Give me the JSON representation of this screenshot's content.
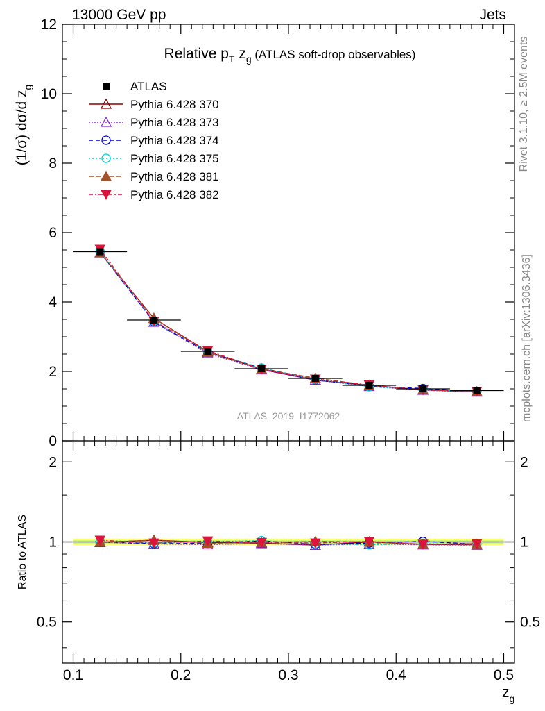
{
  "header": {
    "left": "13000 GeV pp",
    "right": "Jets"
  },
  "side_text": {
    "rivet": "Rivet 3.1.10, ≥ 2.5M events",
    "mcplots": "mcplots.cern.ch [arXiv:1306.3436]"
  },
  "watermark": "ATLAS_2019_I1772062",
  "chart_data": {
    "type": "line",
    "title": {
      "prefix": "Relative p",
      "sub1": "T",
      "mid": " z",
      "sub2": "g",
      "suffix": " (ATLAS soft-drop observables)"
    },
    "xlabel": {
      "main": "z",
      "sub": "g"
    },
    "ylabel": {
      "main": "(1/σ) dσ/d z",
      "sub": "g"
    },
    "ratio_ylabel": "Ratio to ATLAS",
    "xlim": [
      0.09,
      0.51
    ],
    "ylim": [
      0,
      12
    ],
    "ratio_ylim": [
      0.35,
      2.4
    ],
    "x_ticks": [
      "0.1",
      "0.2",
      "0.3",
      "0.4",
      "0.5"
    ],
    "y_ticks": [
      "0",
      "2",
      "4",
      "6",
      "8",
      "10",
      "12"
    ],
    "ratio_ticks": [
      "0.5",
      "1",
      "2"
    ],
    "x": [
      0.125,
      0.175,
      0.225,
      0.275,
      0.325,
      0.375,
      0.425,
      0.475
    ],
    "x_err": 0.025,
    "data": {
      "name": "ATLAS",
      "values": [
        5.45,
        3.48,
        2.58,
        2.08,
        1.8,
        1.6,
        1.5,
        1.45
      ],
      "band": 0.03
    },
    "series": [
      {
        "name": "Pythia 6.428 370",
        "color": "#8b0000",
        "dash": "",
        "marker": "triangle-open",
        "values": [
          5.42,
          3.53,
          2.57,
          2.06,
          1.75,
          1.6,
          1.47,
          1.41
        ],
        "ratio": [
          0.995,
          1.015,
          0.995,
          0.99,
          0.972,
          1.0,
          0.978,
          0.975
        ]
      },
      {
        "name": "Pythia 6.428 373",
        "color": "#8a2be2",
        "dash": "2,2",
        "marker": "triangle-open",
        "values": [
          5.43,
          3.42,
          2.52,
          2.05,
          1.75,
          1.57,
          1.46,
          1.41
        ],
        "ratio": [
          0.997,
          0.982,
          0.977,
          0.985,
          0.972,
          0.982,
          0.975,
          0.972
        ]
      },
      {
        "name": "Pythia 6.428 374",
        "color": "#0000cd",
        "dash": "6,4",
        "marker": "circle-open",
        "values": [
          5.44,
          3.43,
          2.55,
          2.1,
          1.76,
          1.58,
          1.51,
          1.42
        ],
        "ratio": [
          1.0,
          0.985,
          0.988,
          1.01,
          0.978,
          0.99,
          1.005,
          0.98
        ]
      },
      {
        "name": "Pythia 6.428 375",
        "color": "#00ced1",
        "dash": "2,3",
        "marker": "circle-open",
        "values": [
          5.46,
          3.45,
          2.58,
          2.1,
          1.77,
          1.56,
          1.48,
          1.42
        ],
        "ratio": [
          1.002,
          0.99,
          1.0,
          1.012,
          0.983,
          0.975,
          0.985,
          0.98
        ]
      },
      {
        "name": "Pythia 6.428 381",
        "color": "#a0522d",
        "dash": "7,3",
        "marker": "triangle-filled",
        "values": [
          5.43,
          3.53,
          2.55,
          2.07,
          1.81,
          1.6,
          1.47,
          1.42
        ],
        "ratio": [
          0.998,
          1.015,
          0.988,
          0.995,
          1.005,
          1.0,
          0.98,
          0.98
        ]
      },
      {
        "name": "Pythia 6.428 382",
        "color": "#dc143c",
        "dash": "6,3,2,3",
        "marker": "triangle-down-filled",
        "values": [
          5.52,
          3.45,
          2.6,
          2.07,
          1.78,
          1.61,
          1.47,
          1.43
        ],
        "ratio": [
          1.015,
          0.99,
          1.008,
          0.995,
          0.99,
          1.005,
          0.98,
          0.985
        ]
      }
    ]
  }
}
